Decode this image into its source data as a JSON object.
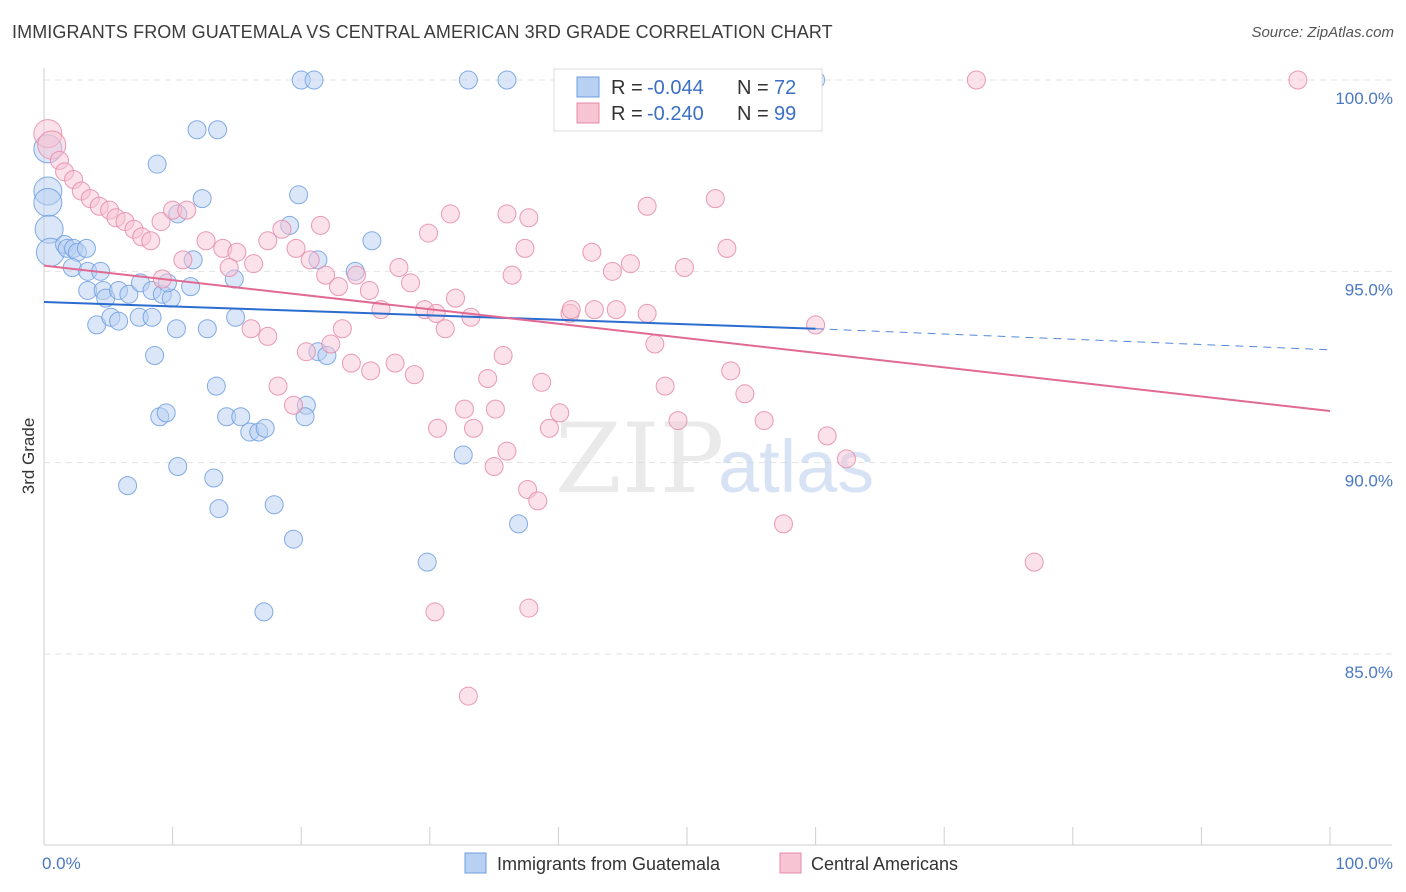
{
  "title": "IMMIGRANTS FROM GUATEMALA VS CENTRAL AMERICAN 3RD GRADE CORRELATION CHART",
  "source": "Source: ZipAtlas.com",
  "watermark": {
    "zip": "ZIP",
    "atlas": "atlas"
  },
  "chart_data": {
    "type": "scatter",
    "ylabel": "3rd Grade",
    "xlabel": "",
    "x_ticks": [
      "0.0%",
      "100.0%"
    ],
    "y_ticks": [
      "100.0%",
      "95.0%",
      "90.0%",
      "85.0%"
    ],
    "y_tick_values": [
      100,
      95,
      90,
      85
    ],
    "xlim": [
      0,
      100
    ],
    "ylim": [
      80,
      100.8
    ],
    "grid": true,
    "legend_position": "top-center",
    "series": [
      {
        "name": "Immigrants from Guatemala",
        "color": "#6d9ee0",
        "fill": "#b8d0f2",
        "r_label": "R =",
        "r_value": "-0.044",
        "n_label": "N =",
        "n_value": "72",
        "trend": {
          "x0": 0,
          "y0": 94.2,
          "x1": 60,
          "y1": 93.5,
          "dash_to_x": 100,
          "dash_to_y": 92.95,
          "color": "#2b6ccf"
        },
        "points": [
          [
            0.3,
            98.2
          ],
          [
            0.3,
            97.1
          ],
          [
            0.3,
            96.8
          ],
          [
            0.4,
            96.1
          ],
          [
            0.5,
            95.5
          ],
          [
            1.6,
            95.7
          ],
          [
            1.8,
            95.6
          ],
          [
            2.3,
            95.6
          ],
          [
            2.6,
            95.5
          ],
          [
            3.3,
            95.6
          ],
          [
            2.2,
            95.1
          ],
          [
            3.4,
            95.0
          ],
          [
            4.4,
            95.0
          ],
          [
            3.4,
            94.5
          ],
          [
            4.6,
            94.5
          ],
          [
            4.8,
            94.3
          ],
          [
            5.8,
            94.5
          ],
          [
            6.6,
            94.4
          ],
          [
            7.5,
            94.7
          ],
          [
            8.4,
            94.5
          ],
          [
            9.2,
            94.4
          ],
          [
            9.9,
            94.3
          ],
          [
            4.1,
            93.6
          ],
          [
            5.2,
            93.8
          ],
          [
            5.8,
            93.7
          ],
          [
            7.4,
            93.8
          ],
          [
            8.4,
            93.8
          ],
          [
            10.3,
            93.5
          ],
          [
            12.7,
            93.5
          ],
          [
            14.9,
            93.8
          ],
          [
            8.6,
            92.8
          ],
          [
            13.4,
            92.0
          ],
          [
            9.0,
            91.2
          ],
          [
            9.5,
            91.3
          ],
          [
            14.2,
            91.2
          ],
          [
            15.3,
            91.2
          ],
          [
            16.0,
            90.8
          ],
          [
            16.7,
            90.8
          ],
          [
            17.2,
            90.9
          ],
          [
            10.4,
            89.9
          ],
          [
            13.2,
            89.6
          ],
          [
            6.5,
            89.4
          ],
          [
            13.6,
            88.8
          ],
          [
            17.9,
            88.9
          ],
          [
            19.4,
            88.0
          ],
          [
            17.1,
            86.1
          ],
          [
            10.4,
            96.5
          ],
          [
            11.6,
            95.3
          ],
          [
            12.3,
            96.9
          ],
          [
            11.9,
            98.7
          ],
          [
            13.5,
            98.7
          ],
          [
            8.8,
            97.8
          ],
          [
            19.1,
            96.2
          ],
          [
            19.8,
            97.0
          ],
          [
            21.3,
            95.3
          ],
          [
            21.3,
            92.9
          ],
          [
            20.4,
            91.5
          ],
          [
            20.3,
            91.2
          ],
          [
            22.0,
            92.8
          ],
          [
            24.2,
            95.0
          ],
          [
            25.5,
            95.8
          ],
          [
            20.0,
            100.0
          ],
          [
            21.0,
            100.0
          ],
          [
            33.0,
            100.0
          ],
          [
            36.0,
            100.0
          ],
          [
            60.0,
            100.0
          ],
          [
            32.6,
            90.2
          ],
          [
            36.9,
            88.4
          ],
          [
            29.8,
            87.4
          ],
          [
            14.8,
            94.8
          ],
          [
            11.4,
            94.6
          ],
          [
            9.6,
            94.7
          ]
        ]
      },
      {
        "name": "Central Americans",
        "color": "#e58aa9",
        "fill": "#f7c4d4",
        "r_label": "R =",
        "r_value": "-0.240",
        "n_label": "N =",
        "n_value": "99",
        "trend": {
          "x0": 0,
          "y0": 95.15,
          "x1": 100,
          "y1": 91.35,
          "color": "#e06a93"
        },
        "points": [
          [
            0.3,
            98.6
          ],
          [
            0.6,
            98.3
          ],
          [
            1.2,
            97.9
          ],
          [
            1.6,
            97.6
          ],
          [
            2.3,
            97.4
          ],
          [
            2.9,
            97.1
          ],
          [
            3.6,
            96.9
          ],
          [
            4.3,
            96.7
          ],
          [
            5.1,
            96.6
          ],
          [
            5.6,
            96.4
          ],
          [
            6.3,
            96.3
          ],
          [
            7.0,
            96.1
          ],
          [
            7.6,
            95.9
          ],
          [
            8.3,
            95.8
          ],
          [
            9.1,
            96.3
          ],
          [
            10.0,
            96.6
          ],
          [
            11.1,
            96.6
          ],
          [
            12.6,
            95.8
          ],
          [
            13.9,
            95.6
          ],
          [
            15.0,
            95.5
          ],
          [
            16.3,
            95.2
          ],
          [
            17.4,
            95.8
          ],
          [
            18.5,
            96.1
          ],
          [
            19.6,
            95.6
          ],
          [
            20.7,
            95.3
          ],
          [
            21.9,
            94.9
          ],
          [
            22.9,
            94.6
          ],
          [
            24.3,
            94.9
          ],
          [
            25.3,
            94.5
          ],
          [
            26.2,
            94.0
          ],
          [
            27.6,
            95.1
          ],
          [
            28.5,
            94.7
          ],
          [
            29.6,
            94.0
          ],
          [
            30.5,
            93.9
          ],
          [
            31.2,
            93.5
          ],
          [
            32.0,
            94.3
          ],
          [
            33.2,
            93.8
          ],
          [
            34.5,
            92.2
          ],
          [
            35.1,
            91.4
          ],
          [
            35.7,
            92.8
          ],
          [
            36.4,
            94.9
          ],
          [
            37.4,
            95.6
          ],
          [
            38.7,
            92.1
          ],
          [
            39.3,
            90.9
          ],
          [
            40.1,
            91.3
          ],
          [
            40.9,
            93.9
          ],
          [
            42.6,
            95.5
          ],
          [
            44.2,
            95.0
          ],
          [
            45.6,
            95.2
          ],
          [
            46.9,
            96.7
          ],
          [
            47.5,
            93.1
          ],
          [
            48.3,
            92.0
          ],
          [
            49.3,
            91.1
          ],
          [
            37.7,
            96.4
          ],
          [
            36.0,
            96.5
          ],
          [
            31.6,
            96.5
          ],
          [
            29.9,
            96.0
          ],
          [
            21.5,
            96.2
          ],
          [
            16.1,
            93.5
          ],
          [
            17.4,
            93.3
          ],
          [
            18.2,
            92.0
          ],
          [
            19.4,
            91.5
          ],
          [
            20.4,
            92.9
          ],
          [
            22.3,
            93.1
          ],
          [
            23.2,
            93.5
          ],
          [
            23.9,
            92.6
          ],
          [
            25.4,
            92.4
          ],
          [
            27.3,
            92.6
          ],
          [
            28.8,
            92.3
          ],
          [
            30.6,
            90.9
          ],
          [
            32.7,
            91.4
          ],
          [
            33.4,
            90.9
          ],
          [
            35.0,
            89.9
          ],
          [
            36.0,
            90.3
          ],
          [
            37.6,
            89.3
          ],
          [
            38.4,
            89.0
          ],
          [
            30.4,
            86.1
          ],
          [
            33.0,
            83.9
          ],
          [
            37.7,
            86.2
          ],
          [
            41.0,
            94.0
          ],
          [
            42.8,
            94.0
          ],
          [
            44.5,
            94.0
          ],
          [
            46.9,
            93.9
          ],
          [
            60.0,
            93.6
          ],
          [
            57.5,
            88.4
          ],
          [
            62.4,
            90.1
          ],
          [
            60.9,
            90.7
          ],
          [
            77.0,
            87.4
          ],
          [
            97.5,
            100.0
          ],
          [
            72.5,
            100.0
          ],
          [
            52.2,
            96.9
          ],
          [
            53.1,
            95.6
          ],
          [
            53.4,
            92.4
          ],
          [
            54.5,
            91.8
          ],
          [
            56.0,
            91.1
          ],
          [
            49.8,
            95.1
          ],
          [
            10.8,
            95.3
          ],
          [
            14.4,
            95.1
          ],
          [
            9.2,
            94.8
          ]
        ]
      }
    ]
  }
}
